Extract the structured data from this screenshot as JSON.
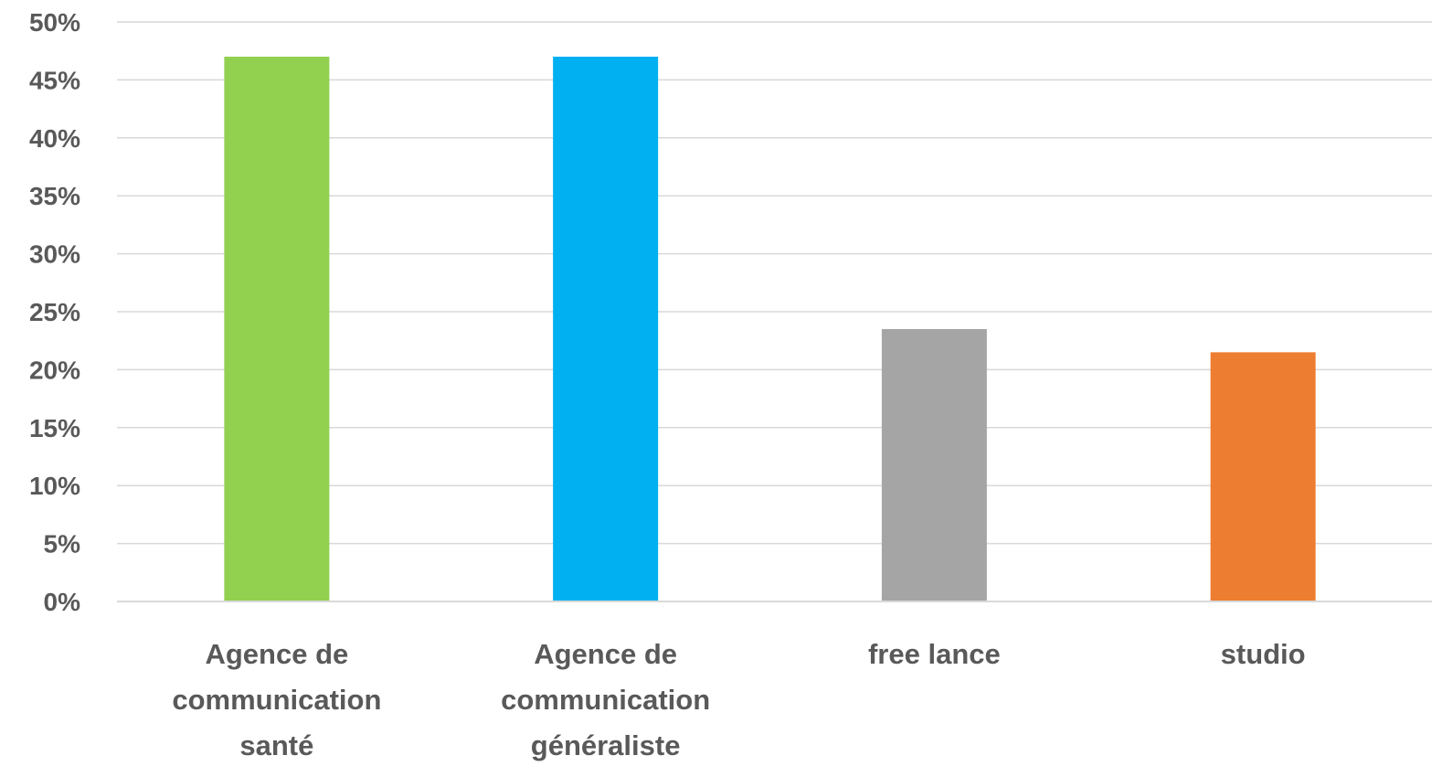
{
  "chart_data": {
    "type": "bar",
    "title": "",
    "xlabel": "",
    "ylabel": "",
    "categories": [
      [
        "Agence de",
        "communication",
        "santé"
      ],
      [
        "Agence de",
        "communication",
        "généraliste"
      ],
      [
        "free lance"
      ],
      [
        "studio"
      ]
    ],
    "values": [
      0.47,
      0.47,
      0.235,
      0.215
    ],
    "colors": [
      "#92d050",
      "#00b0f0",
      "#a5a5a5",
      "#ed7d31"
    ],
    "ylim": [
      0,
      0.5
    ],
    "y_ticks": [
      {
        "value": 0,
        "label": "0%"
      },
      {
        "value": 0.05,
        "label": "5%"
      },
      {
        "value": 0.1,
        "label": "10%"
      },
      {
        "value": 0.15,
        "label": "15%"
      },
      {
        "value": 0.2,
        "label": "20%"
      },
      {
        "value": 0.25,
        "label": "25%"
      },
      {
        "value": 0.3,
        "label": "30%"
      },
      {
        "value": 0.35,
        "label": "35%"
      },
      {
        "value": 0.4,
        "label": "40%"
      },
      {
        "value": 0.45,
        "label": "45%"
      },
      {
        "value": 0.5,
        "label": "50%"
      }
    ],
    "grid": true,
    "legend": "none"
  }
}
